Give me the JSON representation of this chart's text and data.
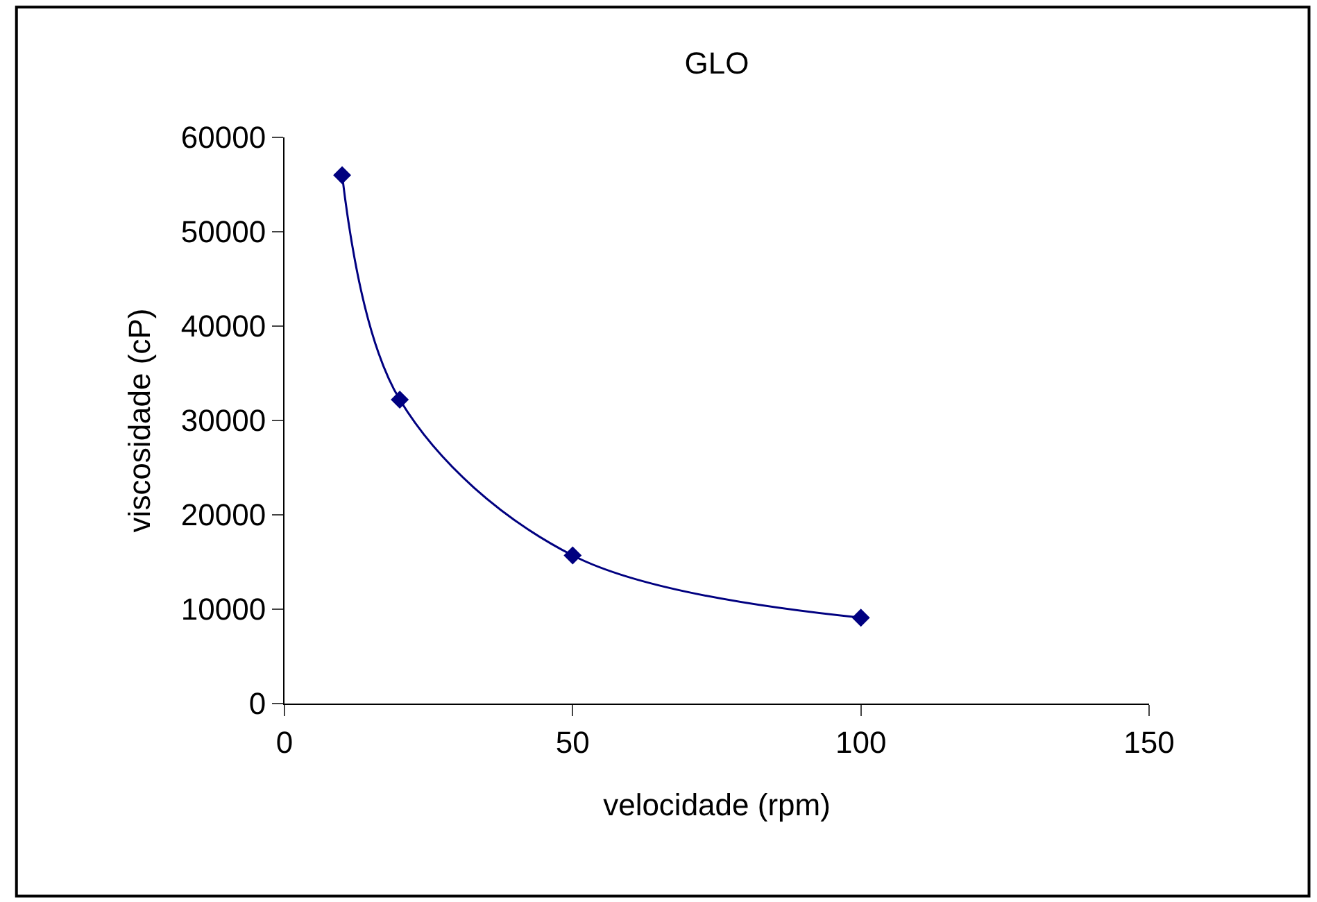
{
  "chart_data": {
    "type": "line",
    "title": "GLO",
    "xlabel": "velocidade (rpm)",
    "ylabel": "viscosidade (cP)",
    "x": [
      10,
      20,
      50,
      100
    ],
    "series": [
      {
        "color": "#000080",
        "values": [
          56000,
          32200,
          15700,
          9100
        ]
      }
    ],
    "xlim": [
      0,
      150
    ],
    "xticks": [
      0,
      50,
      100,
      150
    ],
    "ylim": [
      0,
      60000
    ],
    "yticks": [
      0,
      10000,
      20000,
      30000,
      40000,
      50000,
      60000
    ],
    "legend": false,
    "marker": "diamond",
    "line_style": "solid"
  }
}
